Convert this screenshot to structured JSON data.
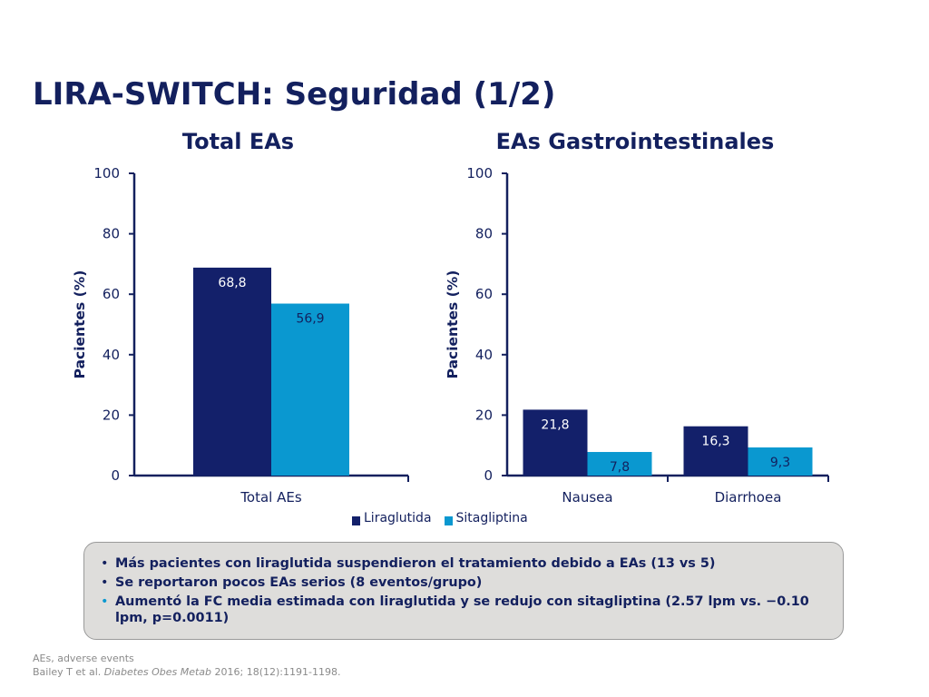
{
  "slide": {
    "title": "LIRA-SWITCH: Seguridad (1/2)"
  },
  "colors": {
    "navy": "#13205e",
    "liraglutide": "#13206a",
    "sitagliptin": "#0a98d0",
    "box_bg": "#dedddb"
  },
  "chart_data": [
    {
      "type": "bar",
      "title": "Total EAs",
      "ylabel": "Pacientes (%)",
      "ylim": [
        0,
        100
      ],
      "yticks": [
        "0",
        "20",
        "40",
        "60",
        "80",
        "100"
      ],
      "categories": [
        "Total AEs"
      ],
      "series": [
        {
          "name": "Liraglutida",
          "values": [
            68.8
          ],
          "labels": [
            "68,8"
          ]
        },
        {
          "name": "Sitagliptina",
          "values": [
            56.9
          ],
          "labels": [
            "56,9"
          ]
        }
      ],
      "grid": false
    },
    {
      "type": "bar",
      "title": "EAs Gastrointestinales",
      "ylabel": "Pacientes (%)",
      "ylim": [
        0,
        100
      ],
      "yticks": [
        "0",
        "20",
        "40",
        "60",
        "80",
        "100"
      ],
      "categories": [
        "Nausea",
        "Diarrhoea"
      ],
      "series": [
        {
          "name": "Liraglutida",
          "values": [
            21.8,
            16.3
          ],
          "labels": [
            "21,8",
            "16,3"
          ]
        },
        {
          "name": "Sitagliptina",
          "values": [
            7.8,
            9.3
          ],
          "labels": [
            "7,8",
            "9,3"
          ]
        }
      ],
      "grid": false
    }
  ],
  "legend": {
    "items": [
      "Liraglutida",
      "Sitagliptina"
    ],
    "placement": "bottom"
  },
  "notes": [
    "Más pacientes con liraglutida suspendieron el tratamiento debido a EAs (13 vs 5)",
    "Se reportaron pocos EAs serios (8 eventos/grupo)",
    "Aumentó la FC media estimada con liraglutida y se redujo con sitagliptina (2.57 lpm vs. −0.10 lpm, p=0.0011)"
  ],
  "footer": {
    "abbrev": "AEs, adverse events",
    "ref_authors": "Bailey T et al.",
    "ref_journal": "Diabetes Obes Metab",
    "ref_details": "2016; 18(12):1191-1198."
  }
}
